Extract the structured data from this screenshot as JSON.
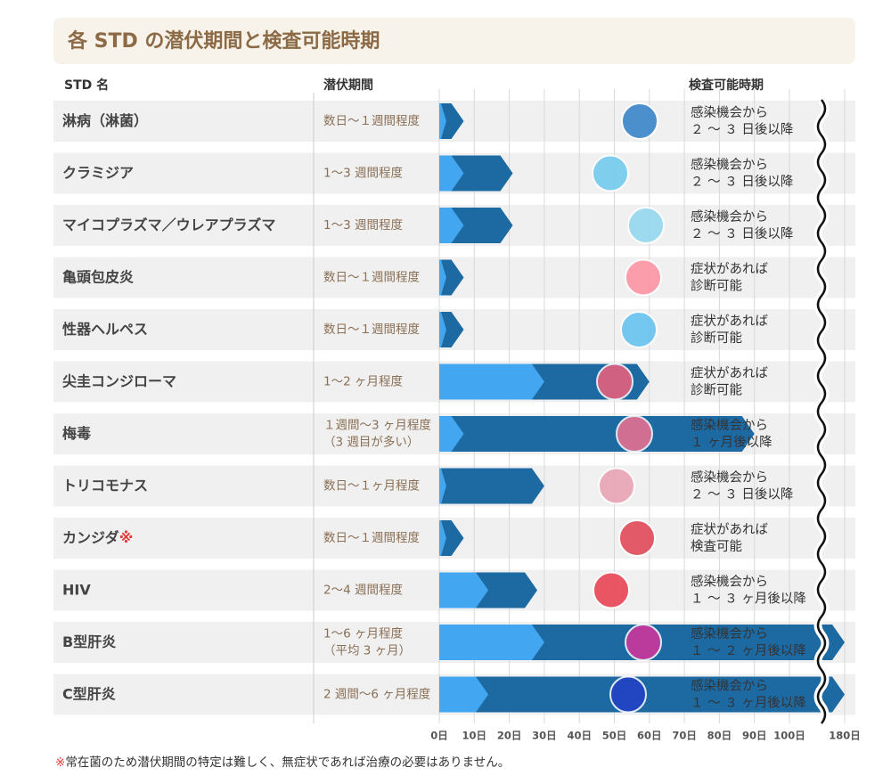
{
  "chart_data": {
    "type": "bar",
    "title": "各 STD の潜伏期間と検査可能時期",
    "headers": [
      "STD 名",
      "潜伏期間",
      "検査可能時期"
    ],
    "categories": [
      "淋病（淋菌）",
      "クラミジア",
      "マイコプラズマ／ウレアプラズマ",
      "亀頭包皮炎",
      "性器ヘルペス",
      "尖圭コンジローマ",
      "梅毒",
      "トリコモナス",
      "カンジダ",
      "HIV",
      "B型肝炎",
      "C型肝炎"
    ],
    "category_notes": [
      null,
      null,
      null,
      null,
      null,
      null,
      null,
      null,
      "※",
      null,
      null,
      null
    ],
    "latency": [
      [
        "数日～１週間程度"
      ],
      [
        "1～3 週間程度"
      ],
      [
        "1～3 週間程度"
      ],
      [
        "数日～１週間程度"
      ],
      [
        "数日～１週間程度"
      ],
      [
        "1～2 ヶ月程度"
      ],
      [
        "１週間～3 ヶ月程度",
        "（3 週目が多い）"
      ],
      [
        "数日～１ヶ月程度"
      ],
      [
        "数日～１週間程度"
      ],
      [
        "2～4 週間程度"
      ],
      [
        "1～6 ヶ月程度",
        "（平均 3 ヶ月）"
      ],
      [
        "2 週間～6 ヶ月程度"
      ]
    ],
    "testing": [
      [
        "感染機会から",
        "２ ～ ３ 日後以降"
      ],
      [
        "感染機会から",
        "２ ～ ３ 日後以降"
      ],
      [
        "感染機会から",
        "２ ～ ３ 日後以降"
      ],
      [
        "症状があれば",
        "診断可能"
      ],
      [
        "症状があれば",
        "診断可能"
      ],
      [
        "症状があれば",
        "診断可能"
      ],
      [
        "感染機会から",
        "１ ヶ月後以降"
      ],
      [
        "感染機会から",
        "２ ～ ３ 日後以降"
      ],
      [
        "症状があれば",
        "検査可能"
      ],
      [
        "感染機会から",
        "１ ～ ３ ヶ月後以降"
      ],
      [
        "感染機会から",
        "１ ～ ２ ヶ月後以降"
      ],
      [
        "感染機会から",
        "１ ～ ３ ヶ月後以降"
      ]
    ],
    "series": [
      {
        "color": "#42a6f0",
        "values": [
          2,
          7,
          7,
          2,
          2,
          30,
          7,
          2,
          2,
          14,
          30,
          14
        ]
      },
      {
        "color": "#1d6aa3",
        "values": [
          7,
          21,
          21,
          7,
          7,
          60,
          90,
          30,
          7,
          28,
          180,
          180
        ]
      }
    ],
    "xlim": [
      0,
      180
    ],
    "axis_break": 100,
    "xticks": [
      {
        "value": 0,
        "label": "0日"
      },
      {
        "value": 10,
        "label": "10日"
      },
      {
        "value": 20,
        "label": "20日"
      },
      {
        "value": 30,
        "label": "30日"
      },
      {
        "value": 40,
        "label": "40日"
      },
      {
        "value": 50,
        "label": "50日"
      },
      {
        "value": 60,
        "label": "60日"
      },
      {
        "value": 70,
        "label": "70日"
      },
      {
        "value": 80,
        "label": "80日"
      },
      {
        "value": 90,
        "label": "90日"
      },
      {
        "value": 100,
        "label": "100日"
      },
      {
        "value": 180,
        "label": "180日"
      }
    ],
    "grid": true,
    "footnote": {
      "mark": "※",
      "text": "常在菌のため潜伏期間の特定は難しく、無症状であれば治療の必要はありません。"
    }
  }
}
